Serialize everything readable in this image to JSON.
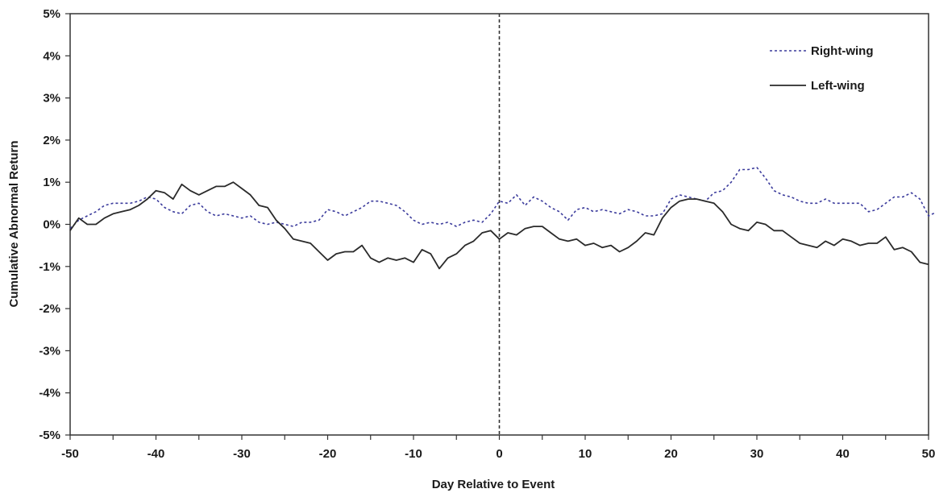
{
  "chart_data": {
    "type": "line",
    "title": "",
    "xlabel": "Day Relative to Event",
    "ylabel": "Cumulative Abnormal Return",
    "xlim": [
      -50,
      50
    ],
    "ylim": [
      -5,
      5
    ],
    "x_ticks": [
      -50,
      -40,
      -30,
      -20,
      -10,
      0,
      10,
      20,
      30,
      40,
      50
    ],
    "y_ticks": [
      5,
      4,
      3,
      2,
      1,
      0,
      -1,
      -2,
      -3,
      -4,
      -5
    ],
    "x_tick_labels": [
      "-50",
      "-40",
      "-30",
      "-20",
      "-10",
      "0",
      "10",
      "20",
      "30",
      "40",
      "50"
    ],
    "y_tick_labels": [
      "5%",
      "4%",
      "3%",
      "2%",
      "1%",
      "0%",
      "-1%",
      "-2%",
      "-3%",
      "-4%",
      "-5%"
    ],
    "y_unit": "%",
    "grid": false,
    "event_line": {
      "x": 0,
      "style": "dashed"
    },
    "legend": {
      "placement": "top-right"
    },
    "series": [
      {
        "name": "Right-wing",
        "color": "#3b3b9c",
        "style": "dotted",
        "points": [
          [
            -50,
            -0.1
          ],
          [
            -49,
            0.1
          ],
          [
            -48,
            0.2
          ],
          [
            -47,
            0.3
          ],
          [
            -46,
            0.45
          ],
          [
            -45,
            0.5
          ],
          [
            -44,
            0.5
          ],
          [
            -43,
            0.5
          ],
          [
            -42,
            0.55
          ],
          [
            -41,
            0.65
          ],
          [
            -40,
            0.6
          ],
          [
            -39,
            0.4
          ],
          [
            -38,
            0.3
          ],
          [
            -37,
            0.25
          ],
          [
            -36,
            0.45
          ],
          [
            -35,
            0.5
          ],
          [
            -34,
            0.3
          ],
          [
            -33,
            0.2
          ],
          [
            -32,
            0.25
          ],
          [
            -31,
            0.2
          ],
          [
            -30,
            0.15
          ],
          [
            -29,
            0.2
          ],
          [
            -28,
            0.05
          ],
          [
            -27,
            0.0
          ],
          [
            -26,
            0.05
          ],
          [
            -25,
            0.0
          ],
          [
            -24,
            -0.05
          ],
          [
            -23,
            0.05
          ],
          [
            -22,
            0.05
          ],
          [
            -21,
            0.1
          ],
          [
            -20,
            0.35
          ],
          [
            -19,
            0.3
          ],
          [
            -18,
            0.2
          ],
          [
            -17,
            0.3
          ],
          [
            -16,
            0.4
          ],
          [
            -15,
            0.55
          ],
          [
            -14,
            0.55
          ],
          [
            -13,
            0.5
          ],
          [
            -12,
            0.45
          ],
          [
            -11,
            0.3
          ],
          [
            -10,
            0.1
          ],
          [
            -9,
            0.0
          ],
          [
            -8,
            0.05
          ],
          [
            -7,
            0.0
          ],
          [
            -6,
            0.05
          ],
          [
            -5,
            -0.05
          ],
          [
            -4,
            0.05
          ],
          [
            -3,
            0.1
          ],
          [
            -2,
            0.05
          ],
          [
            -1,
            0.25
          ],
          [
            0,
            0.55
          ],
          [
            1,
            0.5
          ],
          [
            2,
            0.7
          ],
          [
            3,
            0.45
          ],
          [
            4,
            0.65
          ],
          [
            5,
            0.55
          ],
          [
            6,
            0.4
          ],
          [
            7,
            0.3
          ],
          [
            8,
            0.1
          ],
          [
            9,
            0.35
          ],
          [
            10,
            0.4
          ],
          [
            11,
            0.3
          ],
          [
            12,
            0.35
          ],
          [
            13,
            0.3
          ],
          [
            14,
            0.25
          ],
          [
            15,
            0.35
          ],
          [
            16,
            0.3
          ],
          [
            17,
            0.2
          ],
          [
            18,
            0.2
          ],
          [
            19,
            0.25
          ],
          [
            20,
            0.6
          ],
          [
            21,
            0.7
          ],
          [
            22,
            0.65
          ],
          [
            23,
            0.6
          ],
          [
            24,
            0.55
          ],
          [
            25,
            0.75
          ],
          [
            26,
            0.8
          ],
          [
            27,
            1.0
          ],
          [
            28,
            1.3
          ],
          [
            29,
            1.3
          ],
          [
            30,
            1.35
          ],
          [
            31,
            1.1
          ],
          [
            32,
            0.8
          ],
          [
            33,
            0.7
          ],
          [
            34,
            0.65
          ],
          [
            35,
            0.55
          ],
          [
            36,
            0.5
          ],
          [
            37,
            0.5
          ],
          [
            38,
            0.6
          ],
          [
            39,
            0.5
          ],
          [
            40,
            0.5
          ],
          [
            41,
            0.5
          ],
          [
            42,
            0.5
          ],
          [
            43,
            0.3
          ],
          [
            44,
            0.35
          ],
          [
            45,
            0.5
          ],
          [
            46,
            0.65
          ],
          [
            47,
            0.65
          ],
          [
            48,
            0.75
          ],
          [
            49,
            0.6
          ],
          [
            50,
            0.2
          ],
          [
            51,
            0.3
          ]
        ]
      },
      {
        "name": "Left-wing",
        "color": "#2a2a2a",
        "style": "solid",
        "points": [
          [
            -50,
            -0.15
          ],
          [
            -49,
            0.15
          ],
          [
            -48,
            0.0
          ],
          [
            -47,
            0.0
          ],
          [
            -46,
            0.15
          ],
          [
            -45,
            0.25
          ],
          [
            -44,
            0.3
          ],
          [
            -43,
            0.35
          ],
          [
            -42,
            0.45
          ],
          [
            -41,
            0.6
          ],
          [
            -40,
            0.8
          ],
          [
            -39,
            0.75
          ],
          [
            -38,
            0.6
          ],
          [
            -37,
            0.95
          ],
          [
            -36,
            0.8
          ],
          [
            -35,
            0.7
          ],
          [
            -34,
            0.8
          ],
          [
            -33,
            0.9
          ],
          [
            -32,
            0.9
          ],
          [
            -31,
            1.0
          ],
          [
            -30,
            0.85
          ],
          [
            -29,
            0.7
          ],
          [
            -28,
            0.45
          ],
          [
            -27,
            0.4
          ],
          [
            -26,
            0.1
          ],
          [
            -25,
            -0.1
          ],
          [
            -24,
            -0.35
          ],
          [
            -23,
            -0.4
          ],
          [
            -22,
            -0.45
          ],
          [
            -21,
            -0.65
          ],
          [
            -20,
            -0.85
          ],
          [
            -19,
            -0.7
          ],
          [
            -18,
            -0.65
          ],
          [
            -17,
            -0.65
          ],
          [
            -16,
            -0.5
          ],
          [
            -15,
            -0.8
          ],
          [
            -14,
            -0.9
          ],
          [
            -13,
            -0.8
          ],
          [
            -12,
            -0.85
          ],
          [
            -11,
            -0.8
          ],
          [
            -10,
            -0.9
          ],
          [
            -9,
            -0.6
          ],
          [
            -8,
            -0.7
          ],
          [
            -7,
            -1.05
          ],
          [
            -6,
            -0.8
          ],
          [
            -5,
            -0.7
          ],
          [
            -4,
            -0.5
          ],
          [
            -3,
            -0.4
          ],
          [
            -2,
            -0.2
          ],
          [
            -1,
            -0.15
          ],
          [
            0,
            -0.35
          ],
          [
            1,
            -0.2
          ],
          [
            2,
            -0.25
          ],
          [
            3,
            -0.1
          ],
          [
            4,
            -0.05
          ],
          [
            5,
            -0.05
          ],
          [
            6,
            -0.2
          ],
          [
            7,
            -0.35
          ],
          [
            8,
            -0.4
          ],
          [
            9,
            -0.35
          ],
          [
            10,
            -0.5
          ],
          [
            11,
            -0.45
          ],
          [
            12,
            -0.55
          ],
          [
            13,
            -0.5
          ],
          [
            14,
            -0.65
          ],
          [
            15,
            -0.55
          ],
          [
            16,
            -0.4
          ],
          [
            17,
            -0.2
          ],
          [
            18,
            -0.25
          ],
          [
            19,
            0.15
          ],
          [
            20,
            0.4
          ],
          [
            21,
            0.55
          ],
          [
            22,
            0.6
          ],
          [
            23,
            0.6
          ],
          [
            24,
            0.55
          ],
          [
            25,
            0.5
          ],
          [
            26,
            0.3
          ],
          [
            27,
            0.0
          ],
          [
            28,
            -0.1
          ],
          [
            29,
            -0.15
          ],
          [
            30,
            0.05
          ],
          [
            31,
            0.0
          ],
          [
            32,
            -0.15
          ],
          [
            33,
            -0.15
          ],
          [
            34,
            -0.3
          ],
          [
            35,
            -0.45
          ],
          [
            36,
            -0.5
          ],
          [
            37,
            -0.55
          ],
          [
            38,
            -0.4
          ],
          [
            39,
            -0.5
          ],
          [
            40,
            -0.35
          ],
          [
            41,
            -0.4
          ],
          [
            42,
            -0.5
          ],
          [
            43,
            -0.45
          ],
          [
            44,
            -0.45
          ],
          [
            45,
            -0.3
          ],
          [
            46,
            -0.6
          ],
          [
            47,
            -0.55
          ],
          [
            48,
            -0.65
          ],
          [
            49,
            -0.9
          ],
          [
            50,
            -0.95
          ]
        ]
      }
    ]
  }
}
